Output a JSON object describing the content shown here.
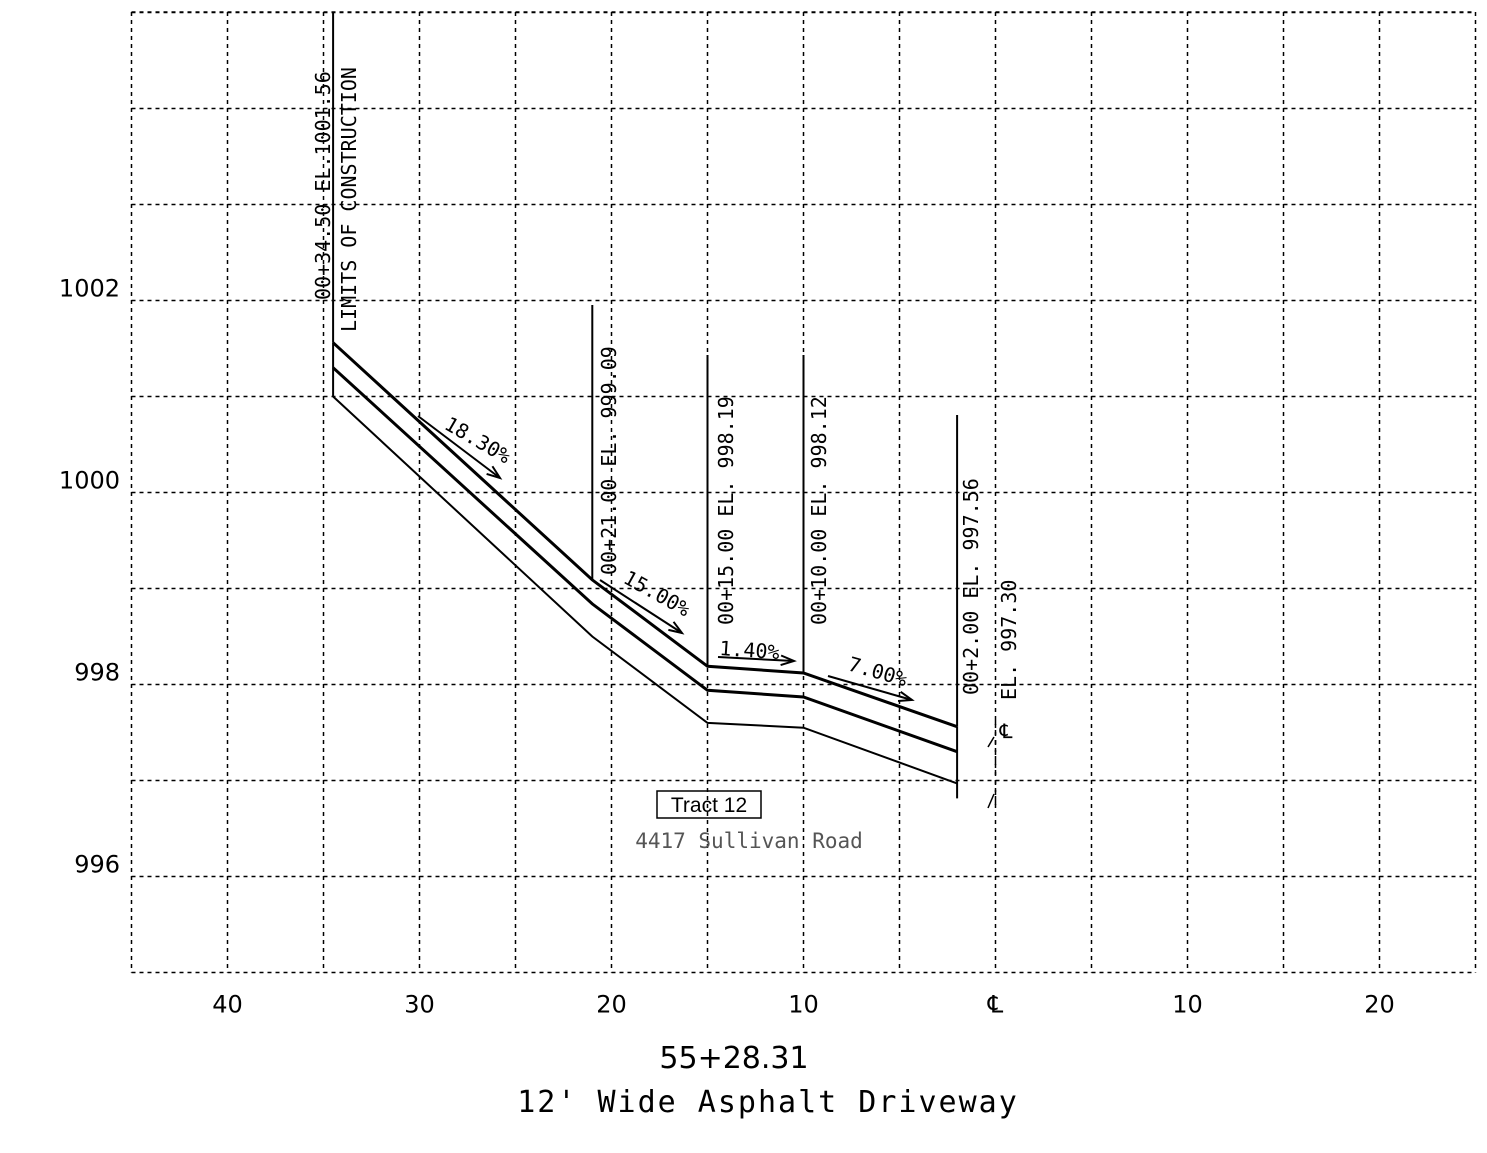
{
  "title": "55+28.31",
  "subtitle": "12' Wide Asphalt Driveway",
  "x_axis": {
    "labels": [
      {
        "value": -40,
        "text": "40"
      },
      {
        "value": -30,
        "text": "30"
      },
      {
        "value": -20,
        "text": "20"
      },
      {
        "value": -10,
        "text": "10"
      },
      {
        "value": 0,
        "text": "℄"
      },
      {
        "value": 10,
        "text": "10"
      },
      {
        "value": 20,
        "text": "20"
      }
    ],
    "range": [
      -45,
      25
    ],
    "grid_step": 5
  },
  "y_axis": {
    "labels": [
      {
        "value": 1002,
        "text": "1002"
      },
      {
        "value": 1000,
        "text": "1000"
      },
      {
        "value": 998,
        "text": "998"
      },
      {
        "value": 996,
        "text": "996"
      }
    ],
    "range": [
      995,
      1005
    ],
    "grid_step": 1
  },
  "grid": true,
  "profile": {
    "top": [
      [
        -34.5,
        1001.56
      ],
      [
        -21,
        999.09
      ],
      [
        -15,
        998.19
      ],
      [
        -10,
        998.12
      ],
      [
        -2,
        997.56
      ]
    ],
    "middle": [
      [
        -34.5,
        1001.3
      ],
      [
        -21,
        998.84
      ],
      [
        -15,
        997.94
      ],
      [
        -10,
        997.87
      ],
      [
        -2,
        997.3
      ]
    ],
    "bottom": [
      [
        -34.5,
        1001.0
      ],
      [
        -21,
        998.5
      ],
      [
        -15,
        997.6
      ],
      [
        -10,
        997.55
      ],
      [
        -2,
        996.97
      ]
    ]
  },
  "stations": [
    {
      "x": -34.5,
      "label": "00+34.50  EL.1001.56",
      "note": "LIMITS OF CONSTRUCTION"
    },
    {
      "x": -21,
      "label": "00+21.00  EL. 999.09"
    },
    {
      "x": -15,
      "label": "00+15.00  EL. 998.19"
    },
    {
      "x": -10,
      "label": "00+10.00  EL. 998.12"
    },
    {
      "x": -2,
      "label": "00+2.00  EL. 997.56"
    },
    {
      "x": 0,
      "label": "EL. 997.30"
    }
  ],
  "slopes": [
    {
      "text": "18.30%"
    },
    {
      "text": "15.00%"
    },
    {
      "text": "1.40%"
    },
    {
      "text": "7.00%"
    }
  ],
  "tract": {
    "name": "Tract 12",
    "address": "4417 Sullivan Road"
  }
}
